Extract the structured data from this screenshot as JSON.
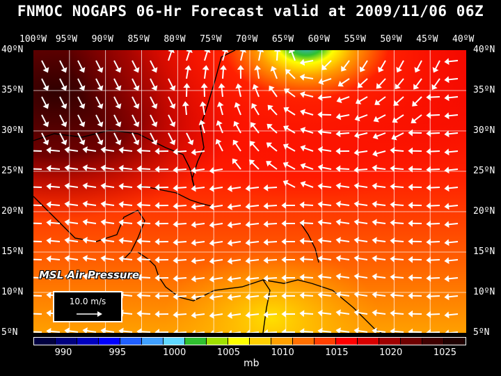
{
  "title": "FNMOC NOGAPS 06-Hr Forecast valid at 2009/11/06 06Z",
  "lon_labels": [
    "100ºW",
    "95ºW",
    "90ºW",
    "85ºW",
    "80ºW",
    "75ºW",
    "70ºW",
    "65ºW",
    "60ºW",
    "55ºW",
    "50ºW",
    "45ºW",
    "40ºW"
  ],
  "lat_labels": [
    "40ºN",
    "35ºN",
    "30ºN",
    "25ºN",
    "20ºN",
    "15ºN",
    "10ºN",
    "5ºN"
  ],
  "field_label": "MSL Air Pressure",
  "reference_vector": "10.0 m/s",
  "colorbar": {
    "colors": [
      "#000040",
      "#000080",
      "#0000c0",
      "#0000ff",
      "#2060ff",
      "#40a0ff",
      "#60d8ff",
      "#30c030",
      "#a0e000",
      "#ffff00",
      "#ffd000",
      "#ffa000",
      "#ff7000",
      "#ff4000",
      "#ff0000",
      "#d80000",
      "#a00000",
      "#700000",
      "#400000",
      "#200000"
    ],
    "labels": [
      "990",
      "995",
      "1000",
      "1005",
      "1010",
      "1015",
      "1020",
      "1025"
    ],
    "units": "mb"
  },
  "colors": {
    "land_outline": "#000000",
    "grid": "#ffffff",
    "wind_arrow": "#ffffff"
  }
}
